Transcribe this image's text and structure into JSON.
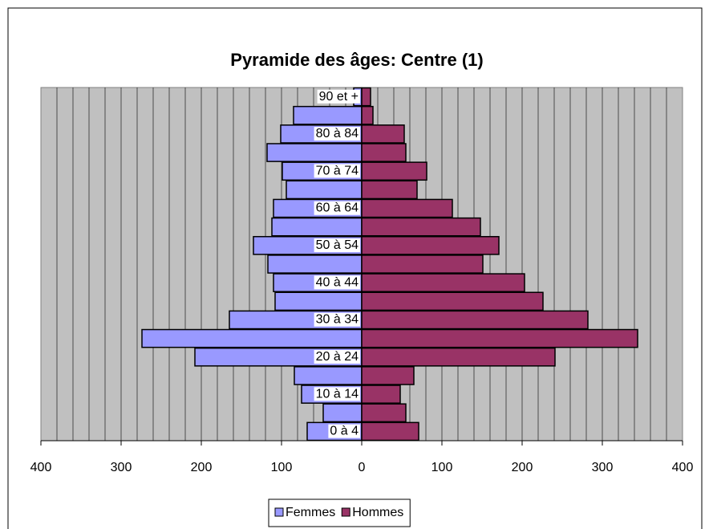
{
  "chart_data": {
    "type": "pyramid",
    "title": "Pyramide des âges: Centre (1)",
    "categories": [
      "0 à 4",
      null,
      "10 à 14",
      null,
      "20 à 24",
      null,
      "30 à 34",
      null,
      "40 à 44",
      null,
      "50 à 54",
      null,
      "60 à 64",
      null,
      "70 à 74",
      null,
      "80 à 84",
      null,
      "90 et +"
    ],
    "series": [
      {
        "name": "Femmes",
        "color": "#9999ff",
        "side": "left",
        "values": [
          68,
          48,
          75,
          84,
          208,
          274,
          165,
          108,
          110,
          117,
          135,
          112,
          110,
          94,
          99,
          118,
          101,
          85,
          10
        ]
      },
      {
        "name": "Hommes",
        "color": "#993366",
        "side": "right",
        "values": [
          71,
          55,
          48,
          65,
          241,
          344,
          282,
          226,
          203,
          151,
          171,
          148,
          113,
          69,
          81,
          55,
          53,
          14,
          11
        ]
      }
    ],
    "xlim": [
      -400,
      400
    ],
    "xticks": [
      {
        "value": -400,
        "label": "400"
      },
      {
        "value": -300,
        "label": "300"
      },
      {
        "value": -200,
        "label": "200"
      },
      {
        "value": -100,
        "label": "100"
      },
      0,
      100,
      200,
      300,
      400
    ],
    "grid": true,
    "minor_grid_step": 20,
    "plot_background": "#c0c0c0",
    "legend": "bottom"
  }
}
